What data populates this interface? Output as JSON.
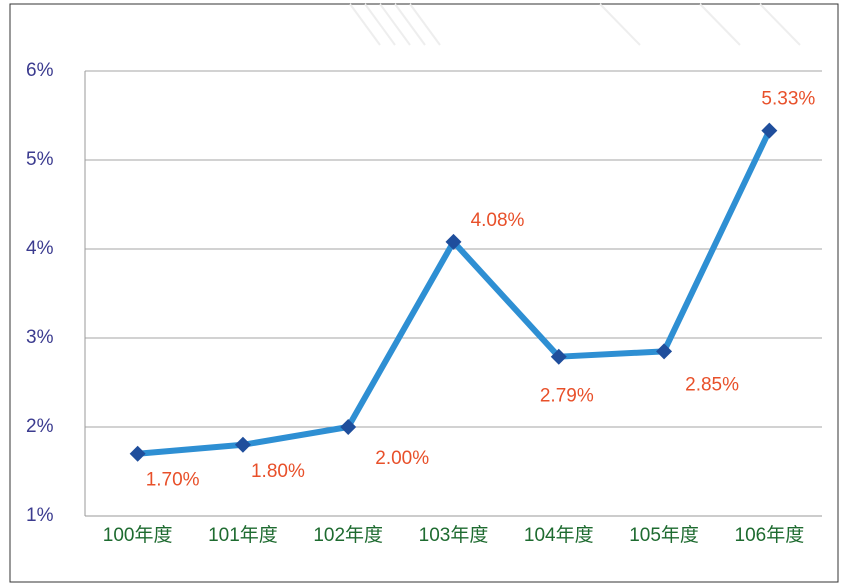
{
  "chart_data": {
    "type": "line",
    "categories": [
      "100年度",
      "101年度",
      "102年度",
      "103年度",
      "104年度",
      "105年度",
      "106年度"
    ],
    "series": [
      {
        "color": "#2e8fd3",
        "marker_color": "#1f4e9c",
        "values": [
          1.7,
          1.8,
          2.0,
          4.08,
          2.79,
          2.85,
          5.33
        ],
        "value_labels": [
          "1.70%",
          "1.80%",
          "2.00%",
          "4.08%",
          "2.79%",
          "2.85%",
          "5.33%"
        ]
      }
    ],
    "ylim": [
      1,
      6
    ],
    "yticks": [
      {
        "value": 1,
        "label": "1%"
      },
      {
        "value": 2,
        "label": "2%"
      },
      {
        "value": 3,
        "label": "3%"
      },
      {
        "value": 4,
        "label": "4%"
      },
      {
        "value": 5,
        "label": "5%"
      },
      {
        "value": 6,
        "label": "6%"
      }
    ],
    "grid": true
  }
}
